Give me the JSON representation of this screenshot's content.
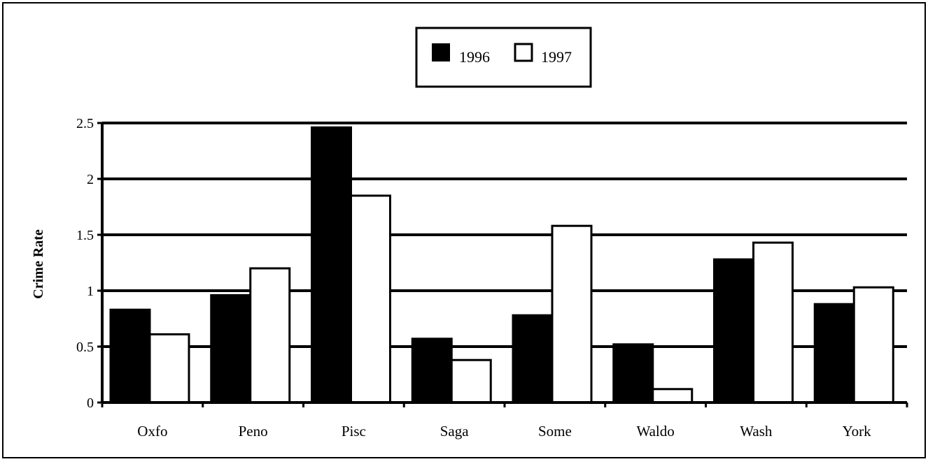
{
  "chart_data": {
    "type": "bar",
    "title": "",
    "xlabel": "",
    "ylabel": "Crime Rate",
    "ylim": [
      0,
      2.5
    ],
    "yticks": [
      0,
      0.5,
      1,
      1.5,
      2,
      2.5
    ],
    "ytick_labels": [
      "0",
      "0.5",
      "1",
      "1.5",
      "2",
      "2.5"
    ],
    "grid": true,
    "legend_position": "top-center",
    "categories": [
      "Oxfo",
      "Peno",
      "Pisc",
      "Saga",
      "Some",
      "Waldo",
      "Wash",
      "York"
    ],
    "series": [
      {
        "name": "1996",
        "color": "#000000",
        "values": [
          0.83,
          0.96,
          2.46,
          0.57,
          0.78,
          0.52,
          1.28,
          0.88
        ]
      },
      {
        "name": "1997",
        "color": "#ffffff",
        "values": [
          0.61,
          1.2,
          1.85,
          0.38,
          1.58,
          0.12,
          1.43,
          1.03
        ]
      }
    ]
  }
}
